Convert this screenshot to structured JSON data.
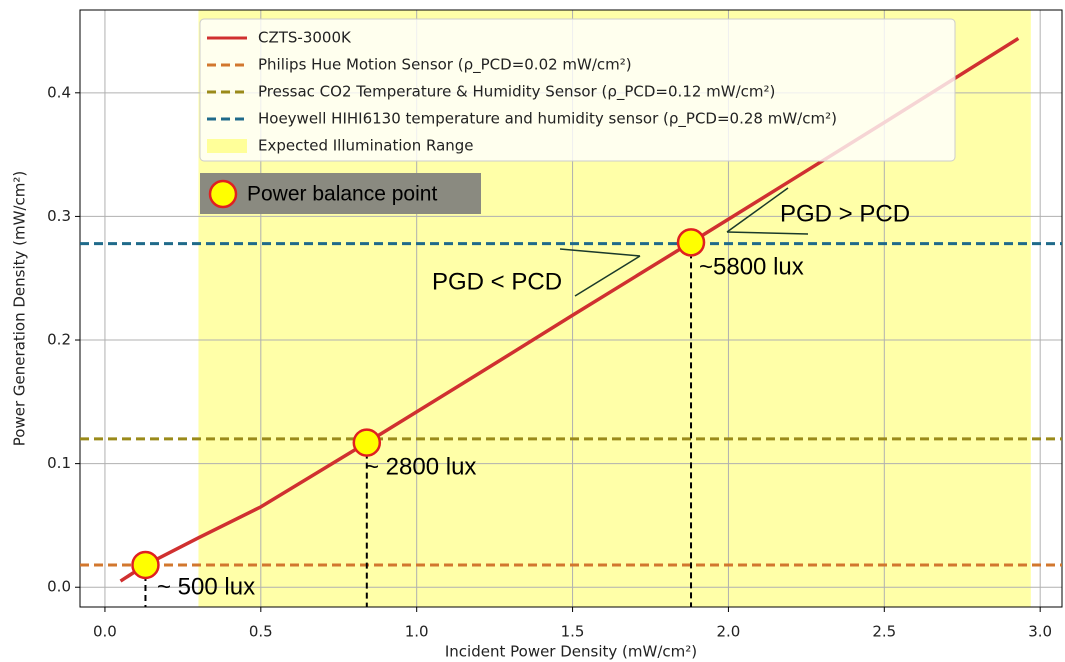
{
  "chart_data": {
    "type": "line",
    "xlabel": "Incident Power Density (mW/cm²)",
    "ylabel": "Power Generation Density (mW/cm²)",
    "xlim": [
      -0.08,
      3.07
    ],
    "ylim": [
      -0.016,
      0.467
    ],
    "xticks": [
      {
        "value": 0,
        "label": "0.0"
      },
      0.5,
      {
        "value": 1,
        "label": "1.0"
      },
      1.5,
      {
        "value": 2,
        "label": "2.0"
      },
      2.5,
      {
        "value": 3,
        "label": "3.0"
      }
    ],
    "yticks": [
      {
        "value": 0,
        "label": "0.0"
      },
      0.1,
      0.2,
      0.3,
      0.4
    ],
    "grid": true,
    "legend": "upper center",
    "series": [
      {
        "name": "CZTS-3000K",
        "color": "#d03030",
        "x": [
          0.05,
          0.13,
          0.3,
          0.5,
          0.84,
          1.2,
          1.5,
          1.88,
          2.2,
          2.5,
          2.93
        ],
        "values": [
          0.005,
          0.018,
          0.04,
          0.065,
          0.117,
          0.173,
          0.22,
          0.279,
          0.329,
          0.376,
          0.444
        ]
      }
    ],
    "hlines": [
      {
        "name": "Philips Hue Motion Sensor (ρ_PCD=0.02 mW/cm²)",
        "color": "#d2772e",
        "value": 0.018
      },
      {
        "name": "Pressac CO2 Temperature & Humidity Sensor (ρ_PCD=0.12 mW/cm²)",
        "color": "#9a8a1a",
        "value": 0.12
      },
      {
        "name": "Hoeywell HIHI6130 temperature and humidity sensor (ρ_PCD=0.28 mW/cm²)",
        "color": "#1f6a8a",
        "value": 0.278
      }
    ],
    "span": {
      "name": "Expected Illumination Range",
      "color": "#ffff99",
      "x": [
        0.3,
        2.97
      ]
    },
    "points": {
      "name": "Power balance point",
      "x": [
        0.13,
        0.84,
        1.88
      ],
      "values": [
        0.018,
        0.117,
        0.279
      ]
    },
    "annotations": [
      "~ 500 lux",
      "~ 2800 lux",
      "~5800 lux",
      "PGD < PCD",
      "PGD > PCD"
    ]
  }
}
